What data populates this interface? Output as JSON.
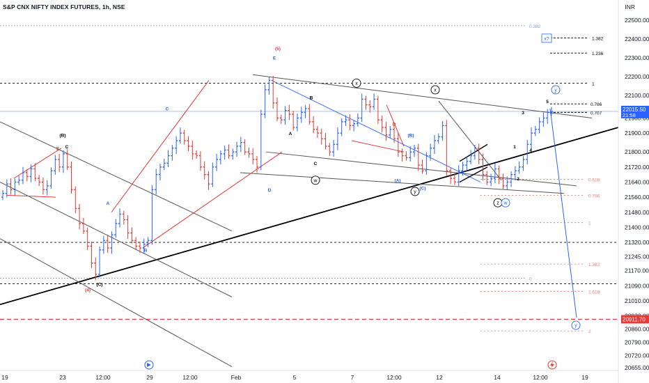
{
  "header": {
    "title": "S&P CNX NIFTY INDEX FUTURES, 1h, NSE",
    "currency": "INR"
  },
  "badges": {
    "price_value": "22015.50",
    "price_time": "21:58",
    "target_value": "20911.70"
  },
  "icons": {
    "replay": "replay-icon",
    "lightning": "lightning-icon"
  },
  "colors": {
    "up": "#2962ff",
    "down": "#e53935",
    "black_line": "#000000",
    "blue_line": "#2962ff",
    "red_line": "#e53935",
    "fib_blue": "#7b9ddb",
    "fib_red": "#f07a7a"
  },
  "chart_data": {
    "type": "candlestick",
    "title": "S&P CNX NIFTY INDEX FUTURES, 1h, NSE",
    "unit": "INR",
    "x_ticks": [
      "19",
      "23",
      "12:00",
      "29",
      "12:00",
      "Feb",
      "5",
      "7",
      "12:00",
      "12",
      "14",
      "12:00",
      "19"
    ],
    "y_ticks": [
      22500,
      22400,
      22300,
      22200,
      22100,
      21980,
      21900,
      21800,
      21720,
      21640,
      21560,
      21480,
      21400,
      21320,
      21245,
      21170,
      21090,
      21010,
      20930,
      20860,
      20790,
      20720,
      20655
    ],
    "y_tick_labels": [
      "22500.00",
      "22400.00",
      "22300.00",
      "22200.00",
      "22100.00",
      "21980.00",
      "21900.00",
      "21800.00",
      "21720.00",
      "21640.00",
      "21560.00",
      "21480.00",
      "21400.00",
      "21320.00",
      "21245.00",
      "21170.00",
      "21090.00",
      "21010.00",
      "20930.00",
      "20860.00",
      "20790.00",
      "20720.00",
      "20655.00"
    ],
    "ylim": [
      20640,
      22540
    ],
    "current_price": 22015.5,
    "target_price": 20911.7,
    "candles_close": [
      21580,
      21630,
      21600,
      21640,
      21650,
      21690,
      21670,
      21710,
      21660,
      21640,
      21600,
      21620,
      21700,
      21760,
      21720,
      21790,
      21720,
      21600,
      21500,
      21420,
      21380,
      21300,
      21210,
      21150,
      21280,
      21330,
      21290,
      21360,
      21420,
      21470,
      21440,
      21370,
      21330,
      21300,
      21290,
      21310,
      21330,
      21600,
      21680,
      21720,
      21740,
      21780,
      21820,
      21860,
      21900,
      21860,
      21830,
      21790,
      21780,
      21720,
      21680,
      21630,
      21720,
      21760,
      21790,
      21810,
      21780,
      21800,
      21830,
      21850,
      21800,
      21790,
      21760,
      21720,
      22000,
      22130,
      22180,
      22060,
      21980,
      21970,
      22020,
      22000,
      21930,
      21980,
      22010,
      22030,
      21960,
      21920,
      21900,
      21870,
      21830,
      21800,
      21840,
      21900,
      21960,
      21970,
      21940,
      21950,
      21980,
      22080,
      22050,
      22040,
      22080,
      21970,
      21930,
      21890,
      21920,
      21870,
      21800,
      21780,
      21770,
      21800,
      21820,
      21730,
      21700,
      21780,
      21820,
      21860,
      21880,
      21940,
      21700,
      21660,
      21640,
      21700,
      21730,
      21750,
      21780,
      21820,
      21760,
      21680,
      21640,
      21660,
      21710,
      21660,
      21620,
      21640,
      21680,
      21700,
      21720,
      21760,
      21840,
      21900,
      21920,
      21960,
      21980,
      22010,
      22015
    ],
    "wave_labels": [
      "(5)",
      "E",
      "A",
      "B",
      "C",
      "D",
      "E",
      "(B)",
      "C",
      "(4)",
      "(C)",
      "A",
      "B",
      "C",
      "D",
      "x",
      "y",
      "w",
      "z",
      "(A)",
      "(B)",
      "(C)",
      "1",
      "2",
      "3",
      "4",
      "5",
      "x?",
      "y"
    ],
    "fib_levels": [
      {
        "label": "0.382",
        "value": 22470,
        "color": "fib_blue"
      },
      {
        "label": "1.382",
        "value": 22405
      },
      {
        "label": "1.236",
        "value": 22325
      },
      {
        "label": "1",
        "value": 22165
      },
      {
        "label": "0.786",
        "value": 22055
      },
      {
        "label": "0.707",
        "value": 22010
      },
      {
        "label": "0.618",
        "value": 21655
      },
      {
        "label": "0.786",
        "value": 21570
      },
      {
        "label": "1",
        "value": 21425
      },
      {
        "label": "1.382",
        "value": 21205
      },
      {
        "label": "0",
        "value": 21130,
        "color": "fib_blue"
      },
      {
        "label": "1.618",
        "value": 21060
      },
      {
        "label": "2",
        "value": 20850
      }
    ],
    "legend": "top-left"
  }
}
